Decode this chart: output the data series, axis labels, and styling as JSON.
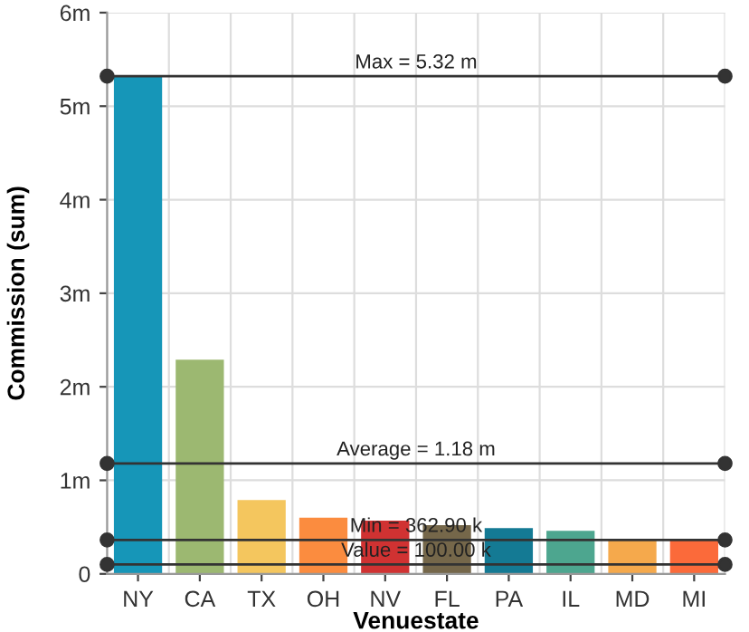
{
  "chart_data": {
    "type": "bar",
    "xlabel": "Venuestate",
    "ylabel": "Commission (sum)",
    "categories": [
      "NY",
      "CA",
      "TX",
      "OH",
      "NV",
      "FL",
      "PA",
      "IL",
      "MD",
      "MI"
    ],
    "values": [
      5.32,
      2.29,
      0.79,
      0.6,
      0.57,
      0.52,
      0.49,
      0.46,
      0.36,
      0.36
    ],
    "colors": [
      "#1696b8",
      "#9cb871",
      "#f4c65e",
      "#fb8c3f",
      "#d03232",
      "#75674a",
      "#147a94",
      "#4da68f",
      "#f5a94c",
      "#fb6a3a"
    ],
    "ylim": [
      0,
      6
    ],
    "yticks": [
      0,
      {
        "value": 1,
        "label": "1m"
      },
      {
        "value": 2,
        "label": "2m"
      },
      {
        "value": 3,
        "label": "3m"
      },
      {
        "value": 4,
        "label": "4m"
      },
      {
        "value": 5,
        "label": "5m"
      },
      {
        "value": 6,
        "label": "6m"
      }
    ],
    "grid": true,
    "ref_lines": [
      {
        "axis": "y",
        "value": 5.32,
        "label": "Max = 5.32 m",
        "color": "#333333"
      },
      {
        "axis": "y",
        "value": 1.18,
        "label": "Average = 1.18 m",
        "color": "#333333"
      },
      {
        "axis": "y",
        "value": 0.3629,
        "label": "Min = 362.90 k",
        "color": "#333333"
      },
      {
        "axis": "y",
        "value": 0.1,
        "label": "Value = 100.00 k",
        "color": "#333333"
      }
    ]
  }
}
